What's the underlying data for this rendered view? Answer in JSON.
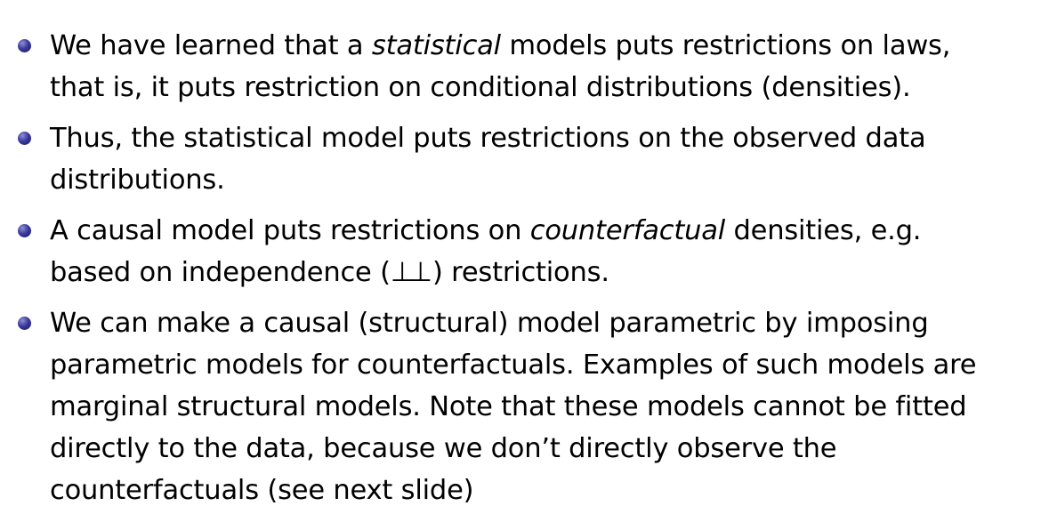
{
  "slide": {
    "bullets": [
      {
        "lines": [
          {
            "pre": "We have learned that a ",
            "em": "statistical",
            "post": " models puts restrictions on laws,"
          },
          {
            "text": "that is, it puts restriction on conditional distributions (densities)."
          }
        ]
      },
      {
        "lines": [
          {
            "text": "Thus, the statistical model puts restrictions on the observed data"
          },
          {
            "text": "distributions."
          }
        ]
      },
      {
        "lines": [
          {
            "pre": "A causal model puts restrictions on ",
            "em": "counterfactual",
            "post": " densities, e.g."
          },
          {
            "pre": "based on independence (",
            "symbol": "⊥⊥",
            "post": ") restrictions."
          }
        ]
      },
      {
        "lines": [
          {
            "text": "We can make a causal (structural) model parametric by imposing"
          },
          {
            "text": "parametric models for counterfactuals.  Examples of such models are"
          },
          {
            "text": "marginal structural models.  Note that these models cannot be fitted"
          },
          {
            "text": "directly to the data, because we don’t directly observe the"
          },
          {
            "text": "counterfactuals (see next slide)"
          }
        ]
      }
    ]
  },
  "colors": {
    "bullet": "#2e2e8f",
    "text": "#000000",
    "background": "#ffffff"
  }
}
